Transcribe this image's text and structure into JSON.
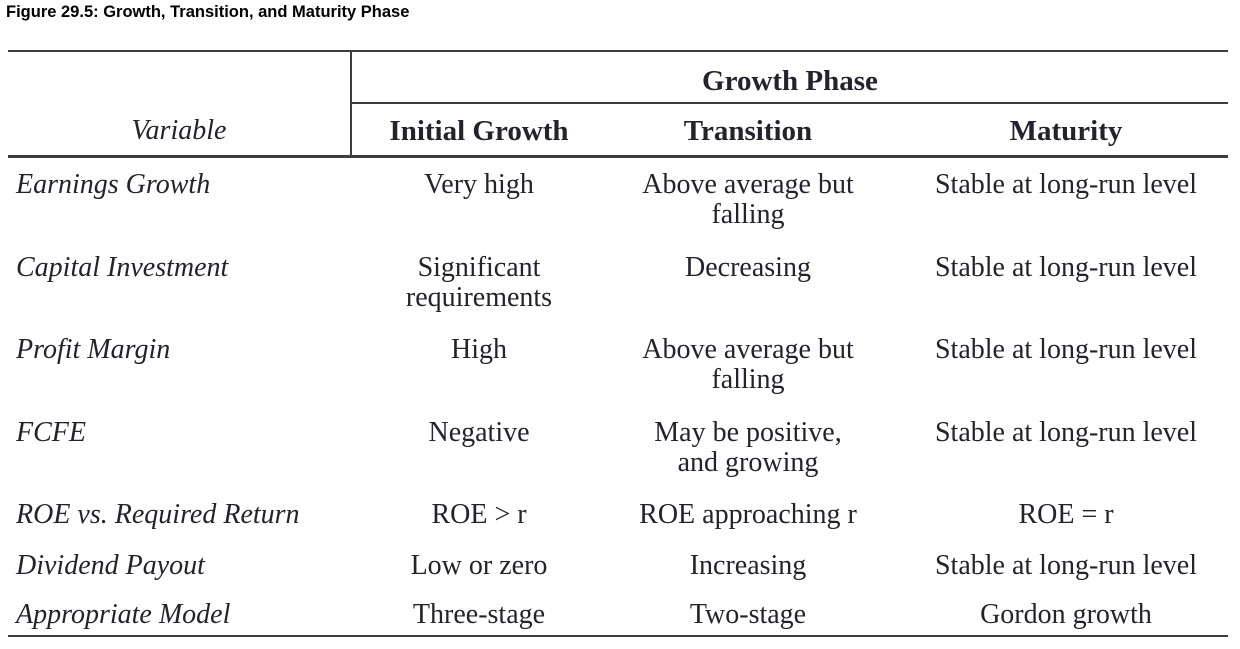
{
  "page": {
    "title": "Figure 29.5: Growth, Transition, and Maturity Phase"
  },
  "table": {
    "span_header": "Growth Phase",
    "col_headers": {
      "variable": "Variable",
      "initial_growth": "Initial Growth",
      "transition": "Transition",
      "maturity": "Maturity"
    },
    "rows": [
      {
        "variable": "Earnings Growth",
        "initial_growth": "Very high",
        "transition": "Above average but\nfalling",
        "maturity": "Stable at long-run level"
      },
      {
        "variable": "Capital Investment",
        "initial_growth": "Significant\nrequirements",
        "transition": "Decreasing",
        "maturity": "Stable at long-run level"
      },
      {
        "variable": "Profit Margin",
        "initial_growth": "High",
        "transition": "Above average but\nfalling",
        "maturity": "Stable at long-run level"
      },
      {
        "variable": "FCFE",
        "initial_growth": "Negative",
        "transition": "May be positive,\nand growing",
        "maturity": "Stable at long-run level"
      },
      {
        "variable": "ROE vs. Required Return",
        "initial_growth": "ROE > r",
        "transition": "ROE approaching r",
        "maturity": "ROE = r"
      },
      {
        "variable": "Dividend Payout",
        "initial_growth": "Low or zero",
        "transition": "Increasing",
        "maturity": "Stable at long-run level"
      },
      {
        "variable": "Appropriate Model",
        "initial_growth": "Three-stage",
        "transition": "Two-stage",
        "maturity": "Gordon growth"
      }
    ],
    "colors": {
      "text": "#23232b",
      "line": "#3d3d3d",
      "background": "#ffffff"
    }
  }
}
